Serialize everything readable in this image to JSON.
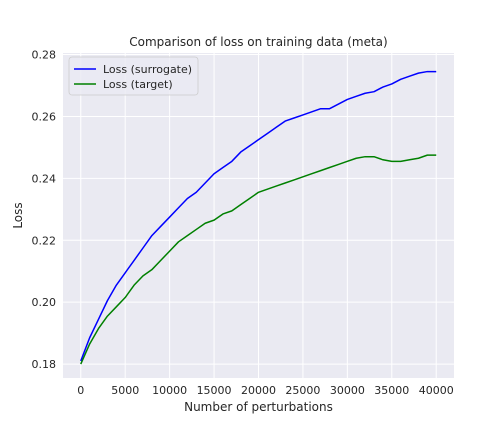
{
  "chart_data": {
    "type": "line",
    "title": "Comparison of loss on training data (meta)",
    "xlabel": "Number of perturbations",
    "ylabel": "Loss",
    "xlim": [
      -2000,
      42000
    ],
    "ylim": [
      0.1755,
      0.2805
    ],
    "xticks": [
      0,
      5000,
      10000,
      15000,
      20000,
      25000,
      30000,
      35000,
      40000
    ],
    "xtick_labels": [
      "0",
      "5000",
      "10000",
      "15000",
      "20000",
      "25000",
      "30000",
      "35000",
      "40000"
    ],
    "yticks": [
      0.18,
      0.2,
      0.22,
      0.24,
      0.26,
      0.28
    ],
    "ytick_labels": [
      "0.18",
      "0.20",
      "0.22",
      "0.24",
      "0.26",
      "0.28"
    ],
    "grid": true,
    "legend_position": "top-left",
    "background": "#eaeaf2",
    "series": [
      {
        "name": "Loss (surrogate)",
        "color": "#0000ff",
        "x": [
          0,
          1000,
          2000,
          3000,
          4000,
          5000,
          6000,
          7000,
          8000,
          9000,
          10000,
          11000,
          12000,
          13000,
          14000,
          15000,
          16000,
          17000,
          18000,
          19000,
          20000,
          21000,
          22000,
          23000,
          24000,
          25000,
          26000,
          27000,
          28000,
          29000,
          30000,
          31000,
          32000,
          33000,
          34000,
          35000,
          36000,
          37000,
          38000,
          39000,
          40000
        ],
        "y": [
          0.181,
          0.1885,
          0.1945,
          0.2005,
          0.2055,
          0.2095,
          0.2135,
          0.2175,
          0.2215,
          0.2245,
          0.2275,
          0.2305,
          0.2335,
          0.2355,
          0.2385,
          0.2415,
          0.2435,
          0.2455,
          0.2485,
          0.2505,
          0.2525,
          0.2545,
          0.2565,
          0.2585,
          0.2595,
          0.2605,
          0.2615,
          0.2625,
          0.2625,
          0.264,
          0.2655,
          0.2665,
          0.2675,
          0.268,
          0.2695,
          0.2705,
          0.272,
          0.273,
          0.274,
          0.2745,
          0.2745
        ]
      },
      {
        "name": "Loss (target)",
        "color": "#008000",
        "x": [
          0,
          1000,
          2000,
          3000,
          4000,
          5000,
          6000,
          7000,
          8000,
          9000,
          10000,
          11000,
          12000,
          13000,
          14000,
          15000,
          16000,
          17000,
          18000,
          19000,
          20000,
          21000,
          22000,
          23000,
          24000,
          25000,
          26000,
          27000,
          28000,
          29000,
          30000,
          31000,
          32000,
          33000,
          34000,
          35000,
          36000,
          37000,
          38000,
          39000,
          40000
        ],
        "y": [
          0.18,
          0.1865,
          0.1915,
          0.1955,
          0.1985,
          0.2015,
          0.2055,
          0.2085,
          0.2105,
          0.2135,
          0.2165,
          0.2195,
          0.2215,
          0.2235,
          0.2255,
          0.2265,
          0.2285,
          0.2295,
          0.2315,
          0.2335,
          0.2355,
          0.2365,
          0.2375,
          0.2385,
          0.2395,
          0.2405,
          0.2415,
          0.2425,
          0.2435,
          0.2445,
          0.2455,
          0.2465,
          0.247,
          0.247,
          0.246,
          0.2455,
          0.2455,
          0.246,
          0.2465,
          0.2475,
          0.2475
        ]
      }
    ]
  }
}
